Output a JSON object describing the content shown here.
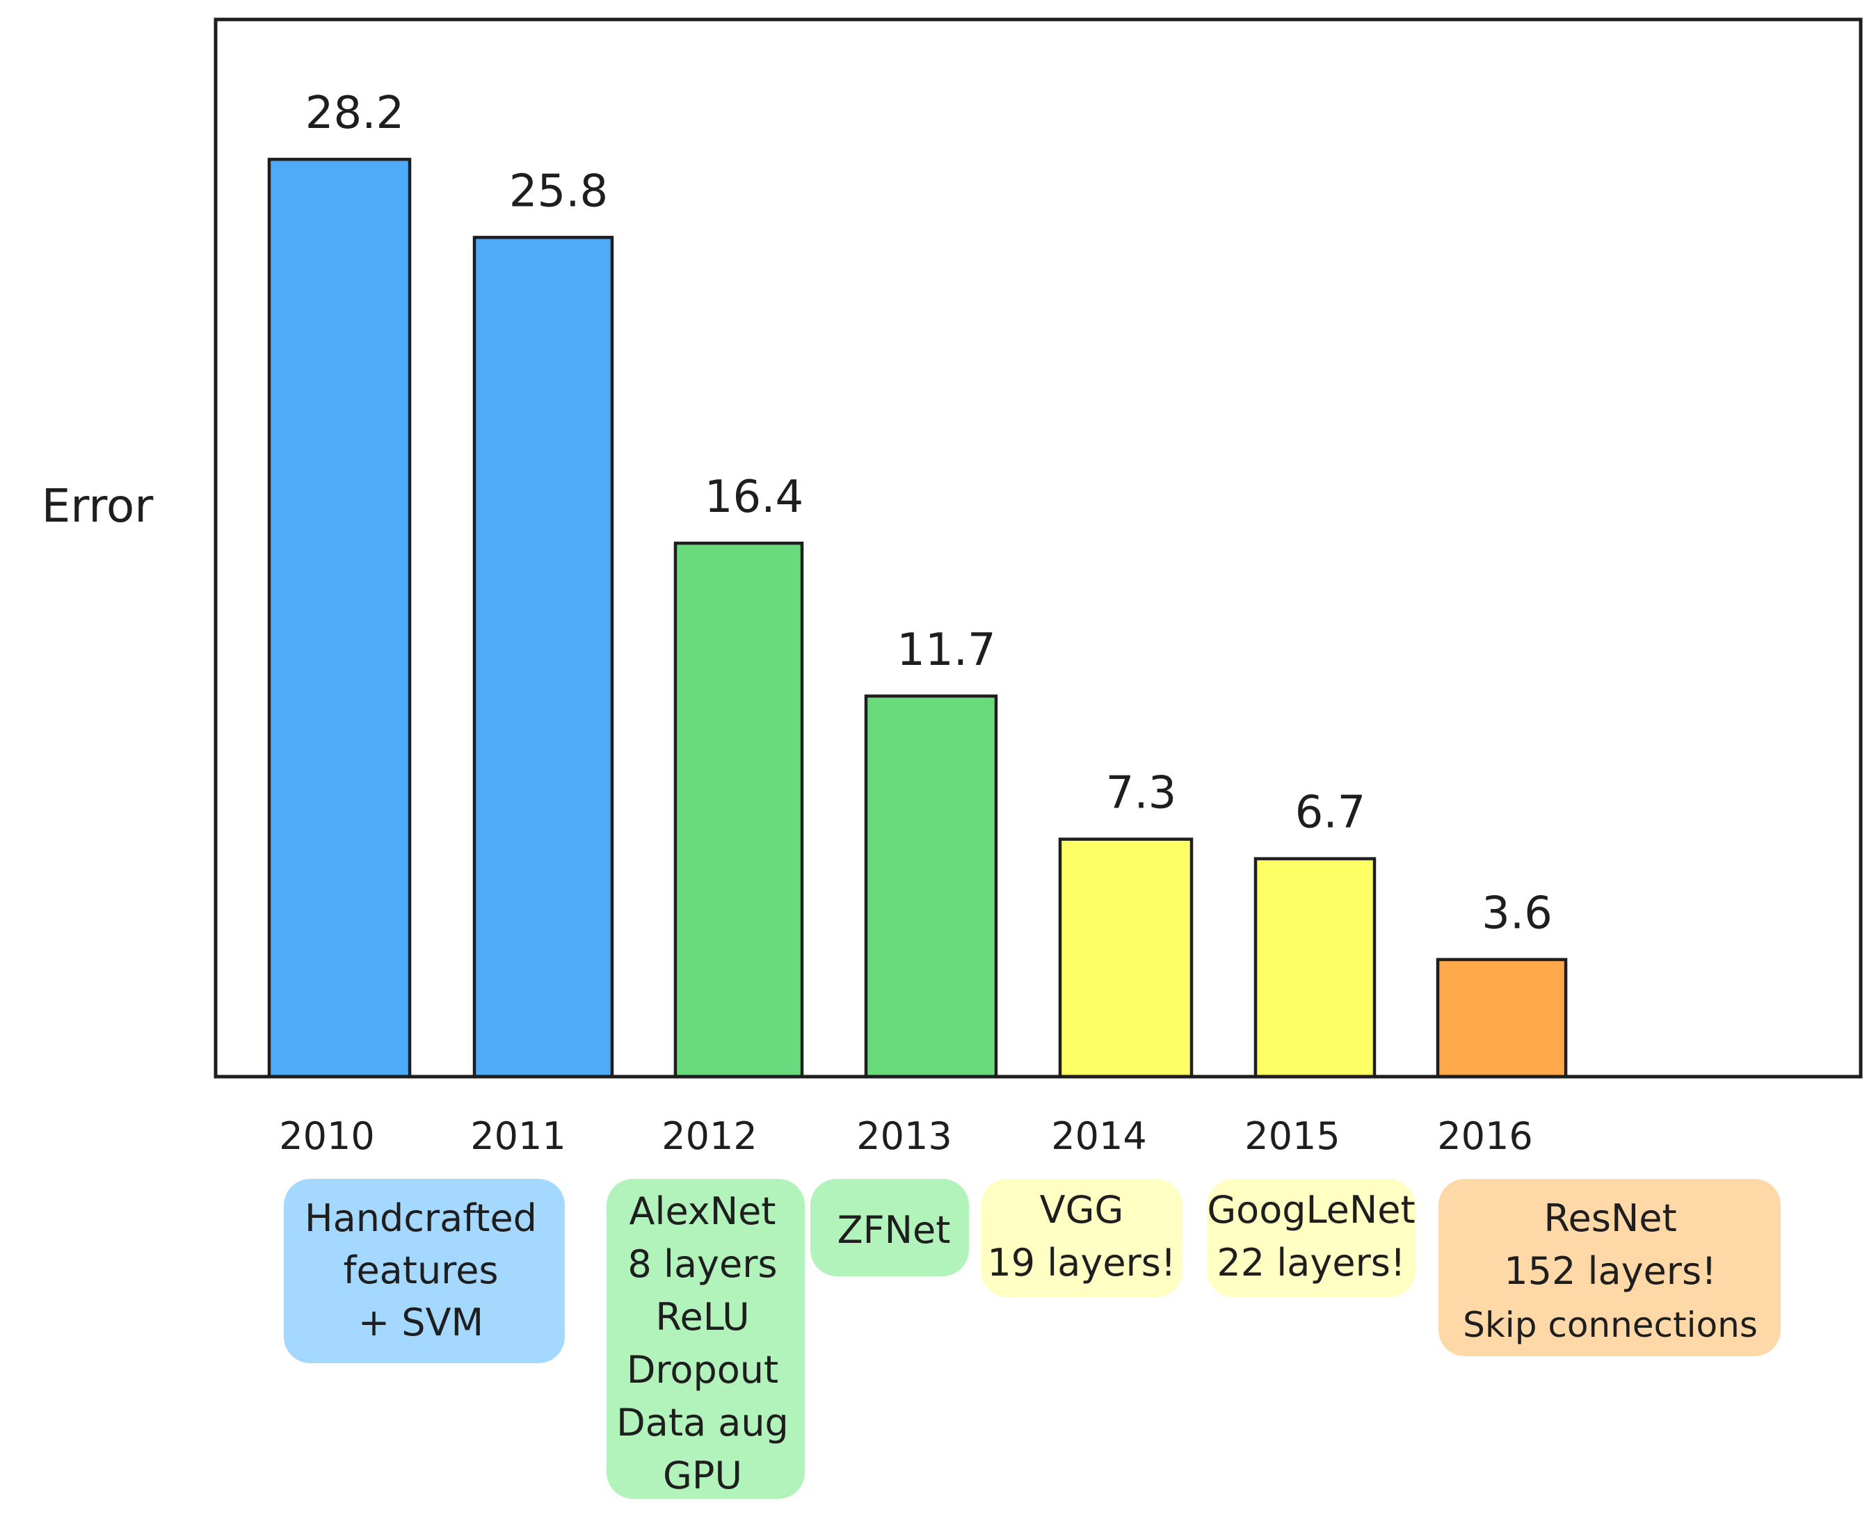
{
  "chart_data": {
    "type": "bar",
    "ylabel": "Error",
    "categories": [
      "2010",
      "2011",
      "2012",
      "2013",
      "2014",
      "2015",
      "2016"
    ],
    "values": [
      28.2,
      25.8,
      16.4,
      11.7,
      7.3,
      6.7,
      3.6
    ],
    "value_labels": [
      "28.2",
      "25.8",
      "16.4",
      "11.7",
      "7.3",
      "6.7",
      "3.6"
    ],
    "ylim": [
      0,
      32.5
    ],
    "grid": false,
    "bar_colors": [
      "#4dabf7",
      "#4dabf7",
      "#69db7c",
      "#69db7c",
      "#ffff66",
      "#ffff66",
      "#ffa94d"
    ],
    "annotations": [
      {
        "lines": [
          "Handcrafted",
          "features",
          "+ SVM"
        ],
        "color": "#a5d8ff"
      },
      {
        "lines": [
          "AlexNet",
          "8 layers",
          "ReLU",
          "Dropout",
          "Data aug",
          "GPU"
        ],
        "color": "#b2f2bb"
      },
      {
        "lines": [
          "ZFNet"
        ],
        "color": "#b2f2bb"
      },
      {
        "lines": [
          "VGG",
          "19 layers!"
        ],
        "color": "#ffffc4"
      },
      {
        "lines": [
          "GoogLeNet",
          "22 layers!"
        ],
        "color": "#ffffc4"
      },
      {
        "lines": [
          "ResNet",
          "152 layers!",
          "Skip connections"
        ],
        "color": "#ffd8a8"
      }
    ]
  }
}
